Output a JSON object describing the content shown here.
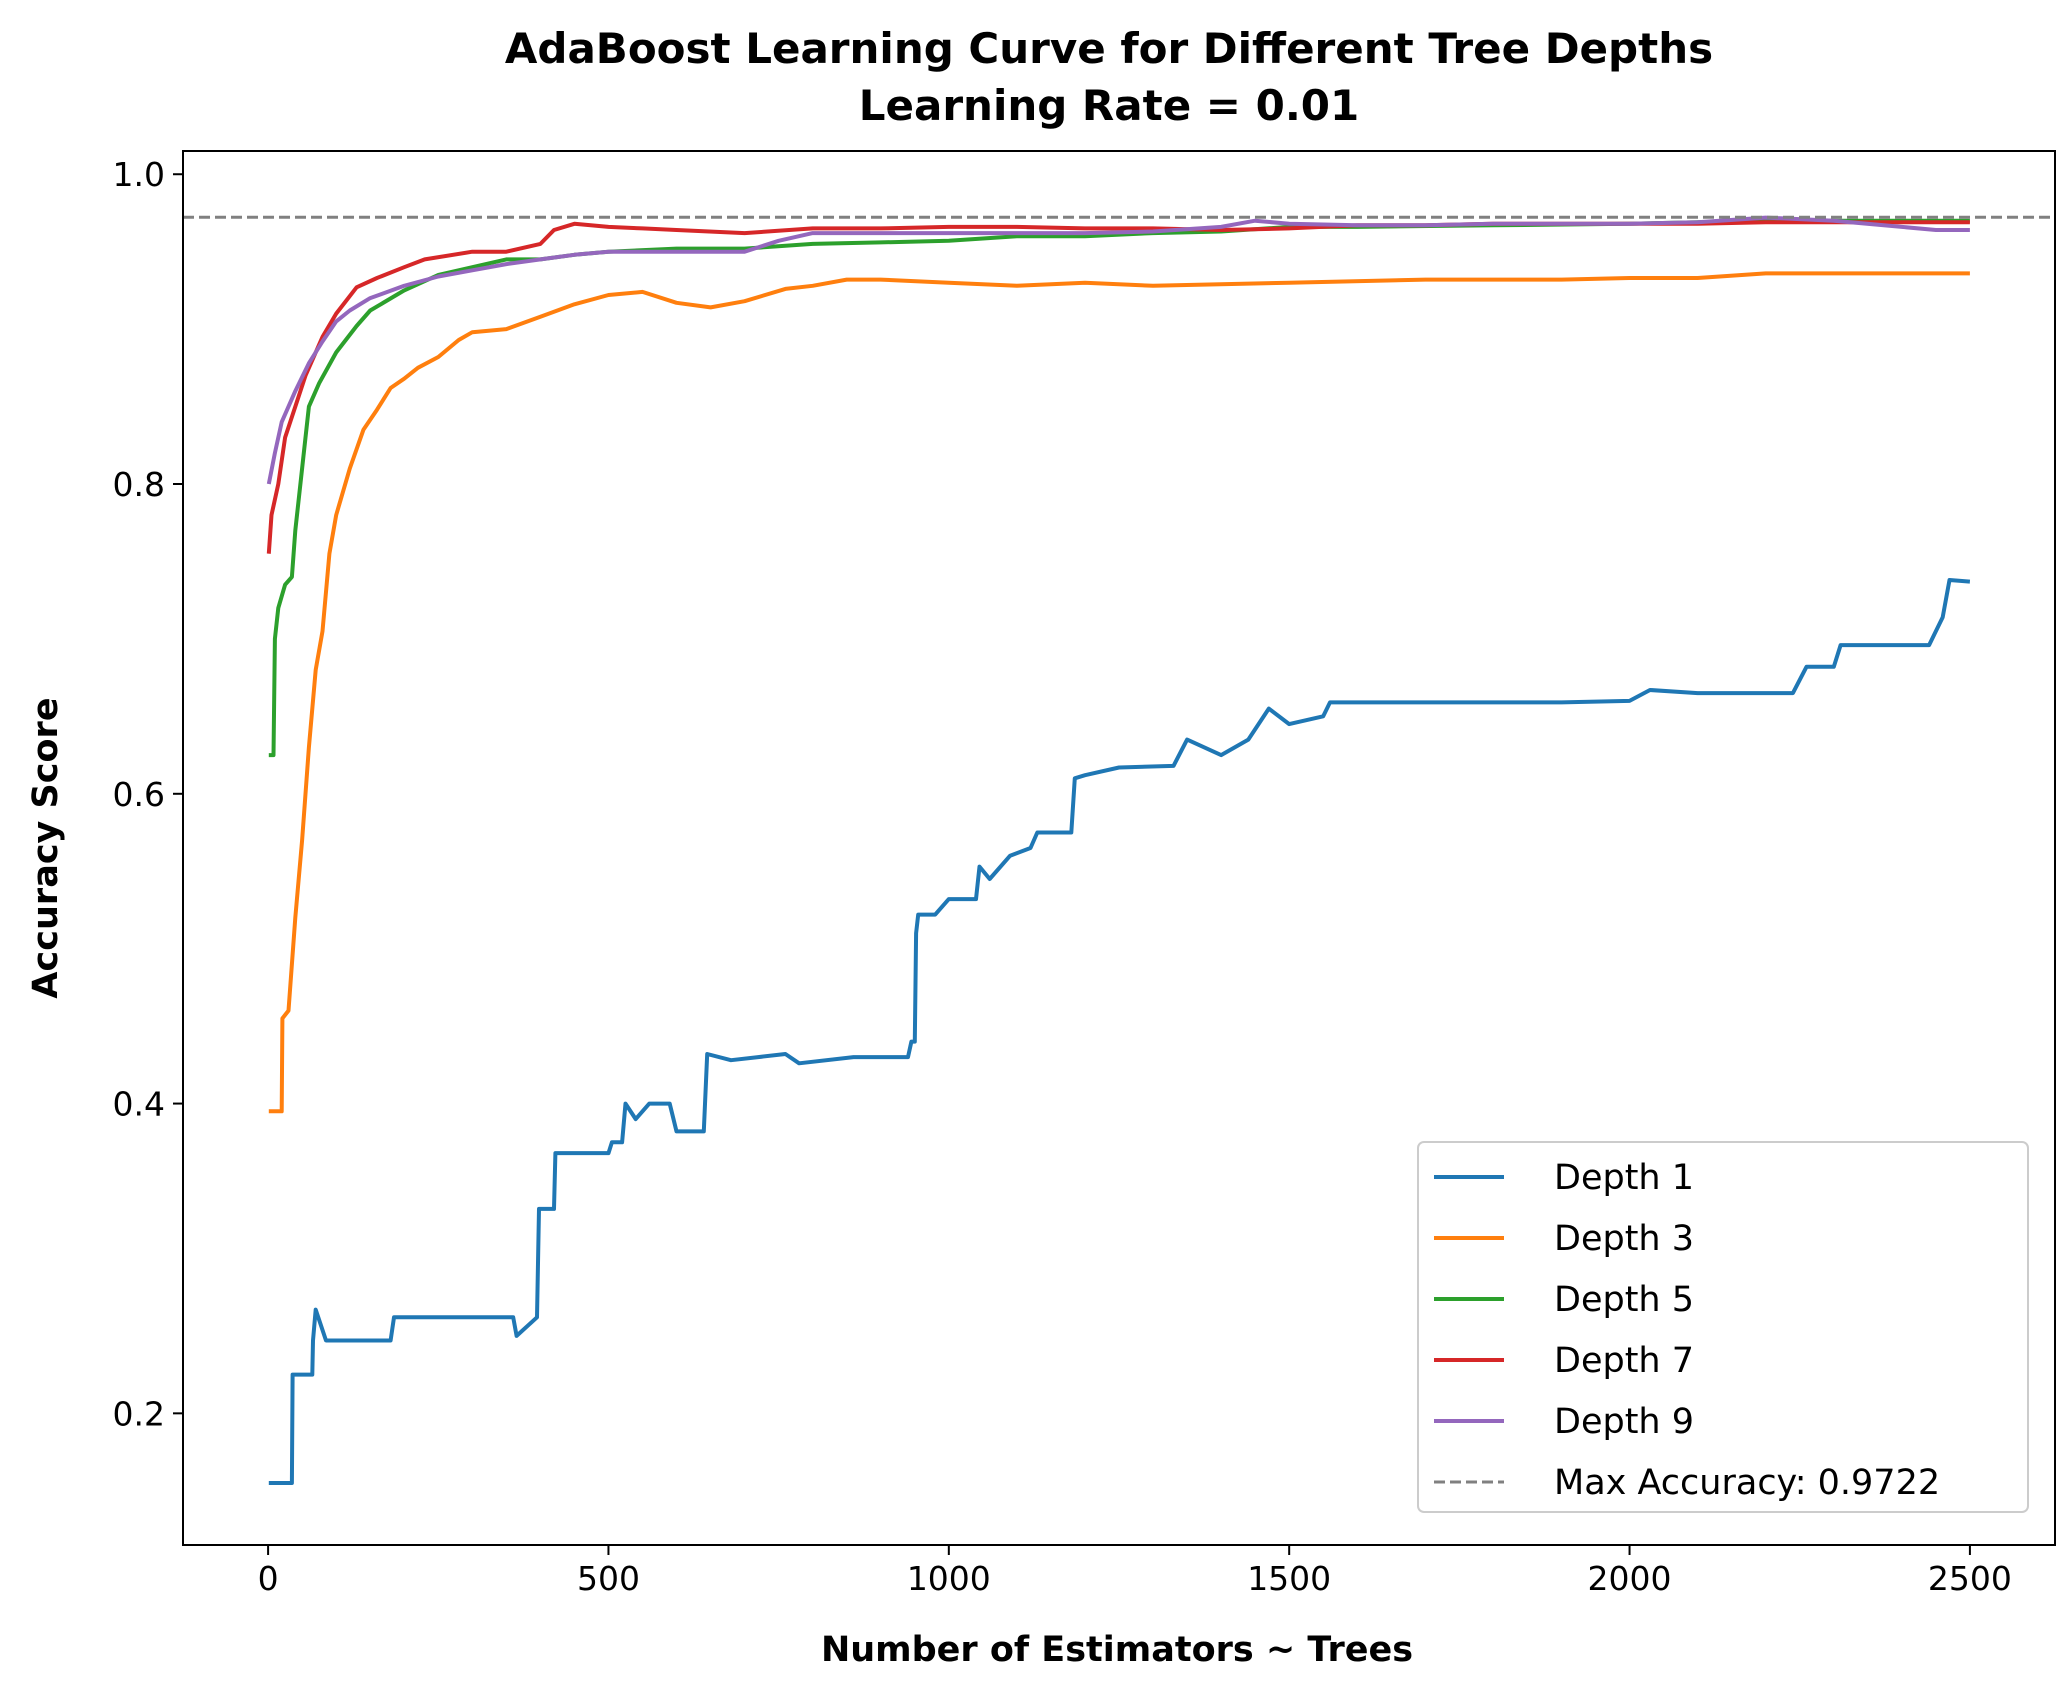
{
  "chart_data": {
    "type": "line",
    "title": "AdaBoost Learning Curve for Different Tree Depths",
    "subtitle": "Learning Rate = 0.01",
    "xlabel": "Number of Estimators ~ Trees",
    "ylabel": "Accuracy Score",
    "xlim": [
      -125,
      2625
    ],
    "ylim": [
      0.115,
      1.015
    ],
    "xticks": [
      0,
      500,
      1000,
      1500,
      2000,
      2500
    ],
    "xtick_labels": [
      "0",
      "500",
      "1000",
      "1500",
      "2000",
      "2500"
    ],
    "yticks": [
      0.2,
      0.4,
      0.6,
      0.8,
      1.0
    ],
    "ytick_labels": [
      "0.2",
      "0.4",
      "0.6",
      "0.8",
      "1.0"
    ],
    "grid": false,
    "legend_position": "bottom-right",
    "series": [
      {
        "name": "Depth 1",
        "color": "#1f77b4",
        "points": [
          [
            1,
            0.155
          ],
          [
            35,
            0.155
          ],
          [
            36,
            0.225
          ],
          [
            65,
            0.225
          ],
          [
            66,
            0.247
          ],
          [
            70,
            0.267
          ],
          [
            85,
            0.247
          ],
          [
            180,
            0.247
          ],
          [
            185,
            0.262
          ],
          [
            260,
            0.262
          ],
          [
            360,
            0.262
          ],
          [
            365,
            0.25
          ],
          [
            395,
            0.262
          ],
          [
            398,
            0.332
          ],
          [
            420,
            0.332
          ],
          [
            422,
            0.368
          ],
          [
            500,
            0.368
          ],
          [
            505,
            0.375
          ],
          [
            520,
            0.375
          ],
          [
            525,
            0.4
          ],
          [
            540,
            0.39
          ],
          [
            560,
            0.4
          ],
          [
            590,
            0.4
          ],
          [
            600,
            0.382
          ],
          [
            640,
            0.382
          ],
          [
            645,
            0.432
          ],
          [
            680,
            0.428
          ],
          [
            720,
            0.43
          ],
          [
            760,
            0.432
          ],
          [
            780,
            0.426
          ],
          [
            860,
            0.43
          ],
          [
            940,
            0.43
          ],
          [
            945,
            0.44
          ],
          [
            950,
            0.44
          ],
          [
            952,
            0.51
          ],
          [
            955,
            0.522
          ],
          [
            980,
            0.522
          ],
          [
            1000,
            0.532
          ],
          [
            1040,
            0.532
          ],
          [
            1045,
            0.553
          ],
          [
            1060,
            0.545
          ],
          [
            1090,
            0.56
          ],
          [
            1120,
            0.565
          ],
          [
            1130,
            0.575
          ],
          [
            1175,
            0.575
          ],
          [
            1180,
            0.575
          ],
          [
            1185,
            0.61
          ],
          [
            1200,
            0.612
          ],
          [
            1250,
            0.617
          ],
          [
            1330,
            0.618
          ],
          [
            1350,
            0.635
          ],
          [
            1400,
            0.625
          ],
          [
            1440,
            0.635
          ],
          [
            1470,
            0.655
          ],
          [
            1500,
            0.645
          ],
          [
            1550,
            0.65
          ],
          [
            1560,
            0.659
          ],
          [
            1700,
            0.659
          ],
          [
            1900,
            0.659
          ],
          [
            2000,
            0.66
          ],
          [
            2030,
            0.667
          ],
          [
            2100,
            0.665
          ],
          [
            2120,
            0.665
          ],
          [
            2240,
            0.665
          ],
          [
            2260,
            0.682
          ],
          [
            2300,
            0.682
          ],
          [
            2310,
            0.696
          ],
          [
            2350,
            0.696
          ],
          [
            2440,
            0.696
          ],
          [
            2460,
            0.714
          ],
          [
            2470,
            0.738
          ],
          [
            2500,
            0.737
          ]
        ]
      },
      {
        "name": "Depth 3",
        "color": "#ff7f0e",
        "points": [
          [
            1,
            0.395
          ],
          [
            20,
            0.395
          ],
          [
            21,
            0.455
          ],
          [
            30,
            0.46
          ],
          [
            40,
            0.52
          ],
          [
            50,
            0.57
          ],
          [
            60,
            0.63
          ],
          [
            70,
            0.68
          ],
          [
            80,
            0.705
          ],
          [
            90,
            0.755
          ],
          [
            100,
            0.78
          ],
          [
            120,
            0.81
          ],
          [
            140,
            0.835
          ],
          [
            160,
            0.848
          ],
          [
            180,
            0.862
          ],
          [
            200,
            0.868
          ],
          [
            220,
            0.875
          ],
          [
            250,
            0.882
          ],
          [
            280,
            0.893
          ],
          [
            300,
            0.898
          ],
          [
            350,
            0.9
          ],
          [
            400,
            0.908
          ],
          [
            450,
            0.916
          ],
          [
            500,
            0.922
          ],
          [
            550,
            0.924
          ],
          [
            600,
            0.917
          ],
          [
            650,
            0.914
          ],
          [
            700,
            0.918
          ],
          [
            760,
            0.926
          ],
          [
            800,
            0.928
          ],
          [
            850,
            0.932
          ],
          [
            900,
            0.932
          ],
          [
            1000,
            0.93
          ],
          [
            1100,
            0.928
          ],
          [
            1200,
            0.93
          ],
          [
            1300,
            0.928
          ],
          [
            1500,
            0.93
          ],
          [
            1700,
            0.932
          ],
          [
            1900,
            0.932
          ],
          [
            2000,
            0.933
          ],
          [
            2100,
            0.933
          ],
          [
            2200,
            0.936
          ],
          [
            2300,
            0.936
          ],
          [
            2400,
            0.936
          ],
          [
            2500,
            0.936
          ]
        ]
      },
      {
        "name": "Depth 5",
        "color": "#2ca02c",
        "points": [
          [
            1,
            0.625
          ],
          [
            8,
            0.625
          ],
          [
            10,
            0.7
          ],
          [
            15,
            0.72
          ],
          [
            25,
            0.735
          ],
          [
            35,
            0.74
          ],
          [
            40,
            0.77
          ],
          [
            50,
            0.81
          ],
          [
            55,
            0.83
          ],
          [
            60,
            0.85
          ],
          [
            75,
            0.865
          ],
          [
            100,
            0.885
          ],
          [
            130,
            0.902
          ],
          [
            150,
            0.912
          ],
          [
            200,
            0.925
          ],
          [
            250,
            0.935
          ],
          [
            300,
            0.94
          ],
          [
            350,
            0.945
          ],
          [
            400,
            0.945
          ],
          [
            450,
            0.948
          ],
          [
            500,
            0.95
          ],
          [
            600,
            0.952
          ],
          [
            700,
            0.952
          ],
          [
            800,
            0.955
          ],
          [
            900,
            0.956
          ],
          [
            1000,
            0.957
          ],
          [
            1100,
            0.96
          ],
          [
            1200,
            0.96
          ],
          [
            1300,
            0.962
          ],
          [
            1400,
            0.963
          ],
          [
            1500,
            0.966
          ],
          [
            1600,
            0.966
          ],
          [
            1800,
            0.967
          ],
          [
            2000,
            0.968
          ],
          [
            2200,
            0.97
          ],
          [
            2400,
            0.97
          ],
          [
            2500,
            0.97
          ]
        ]
      },
      {
        "name": "Depth 7",
        "color": "#d62728",
        "points": [
          [
            1,
            0.755
          ],
          [
            5,
            0.78
          ],
          [
            15,
            0.8
          ],
          [
            25,
            0.83
          ],
          [
            40,
            0.85
          ],
          [
            55,
            0.87
          ],
          [
            70,
            0.885
          ],
          [
            80,
            0.895
          ],
          [
            100,
            0.91
          ],
          [
            130,
            0.927
          ],
          [
            160,
            0.933
          ],
          [
            200,
            0.94
          ],
          [
            230,
            0.945
          ],
          [
            300,
            0.95
          ],
          [
            350,
            0.95
          ],
          [
            400,
            0.955
          ],
          [
            420,
            0.964
          ],
          [
            450,
            0.968
          ],
          [
            500,
            0.966
          ],
          [
            550,
            0.965
          ],
          [
            600,
            0.964
          ],
          [
            700,
            0.962
          ],
          [
            800,
            0.965
          ],
          [
            900,
            0.965
          ],
          [
            1000,
            0.966
          ],
          [
            1100,
            0.966
          ],
          [
            1200,
            0.965
          ],
          [
            1300,
            0.965
          ],
          [
            1400,
            0.964
          ],
          [
            1500,
            0.965
          ],
          [
            1600,
            0.967
          ],
          [
            1700,
            0.967
          ],
          [
            1800,
            0.968
          ],
          [
            1900,
            0.968
          ],
          [
            2000,
            0.968
          ],
          [
            2100,
            0.968
          ],
          [
            2200,
            0.969
          ],
          [
            2300,
            0.969
          ],
          [
            2400,
            0.969
          ],
          [
            2500,
            0.969
          ]
        ]
      },
      {
        "name": "Depth 9",
        "color": "#9467bd",
        "points": [
          [
            1,
            0.8
          ],
          [
            10,
            0.82
          ],
          [
            20,
            0.84
          ],
          [
            40,
            0.86
          ],
          [
            60,
            0.878
          ],
          [
            80,
            0.892
          ],
          [
            100,
            0.905
          ],
          [
            120,
            0.912
          ],
          [
            150,
            0.92
          ],
          [
            200,
            0.928
          ],
          [
            250,
            0.934
          ],
          [
            300,
            0.938
          ],
          [
            350,
            0.942
          ],
          [
            400,
            0.945
          ],
          [
            450,
            0.948
          ],
          [
            500,
            0.95
          ],
          [
            600,
            0.95
          ],
          [
            700,
            0.95
          ],
          [
            750,
            0.957
          ],
          [
            800,
            0.962
          ],
          [
            900,
            0.962
          ],
          [
            1000,
            0.962
          ],
          [
            1100,
            0.962
          ],
          [
            1200,
            0.962
          ],
          [
            1300,
            0.963
          ],
          [
            1400,
            0.966
          ],
          [
            1450,
            0.97
          ],
          [
            1500,
            0.968
          ],
          [
            1600,
            0.967
          ],
          [
            1700,
            0.967
          ],
          [
            1800,
            0.968
          ],
          [
            1900,
            0.968
          ],
          [
            2000,
            0.968
          ],
          [
            2100,
            0.969
          ],
          [
            2200,
            0.972
          ],
          [
            2300,
            0.97
          ],
          [
            2400,
            0.966
          ],
          [
            2450,
            0.964
          ],
          [
            2500,
            0.964
          ]
        ]
      }
    ],
    "reference_line": {
      "name": "Max Accuracy: 0.9722",
      "y": 0.9722,
      "color": "#808080",
      "style": "dashed"
    }
  }
}
